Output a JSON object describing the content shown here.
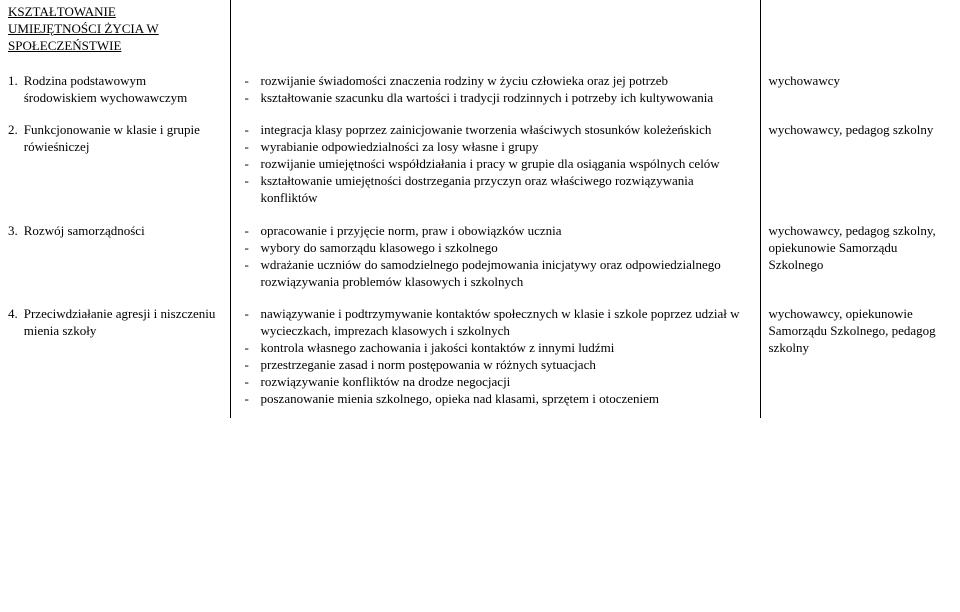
{
  "section_title_lines": [
    "KSZTAŁTOWANIE",
    "UMIEJĘTNOŚCI ŻYCIA W",
    "SPOŁECZEŃSTWIE"
  ],
  "rows": [
    {
      "num": "1.",
      "label": "Rodzina podstawowym środowiskiem wychowawczym",
      "bullets": [
        "rozwijanie świadomości znaczenia rodziny w życiu człowieka oraz jej potrzeb",
        "kształtowanie szacunku dla wartości i tradycji rodzinnych i potrzeby ich kultywowania"
      ],
      "resp": "wychowawcy"
    },
    {
      "num": "2.",
      "label": "Funkcjonowanie w klasie i grupie rówieśniczej",
      "bullets": [
        "integracja klasy poprzez zainicjowanie tworzenia właściwych stosunków koleżeńskich",
        "wyrabianie odpowiedzialności za losy własne i grupy",
        "rozwijanie umiejętności współdziałania i pracy w grupie dla osiągania wspólnych celów",
        "kształtowanie umiejętności dostrzegania przyczyn oraz właściwego rozwiązywania konfliktów"
      ],
      "resp": "wychowawcy, pedagog szkolny"
    },
    {
      "num": "3.",
      "label": "Rozwój samorządności",
      "bullets": [
        "opracowanie i przyjęcie norm, praw i obowiązków ucznia",
        "wybory do samorządu klasowego i szkolnego",
        "wdrażanie uczniów do samodzielnego podejmowania inicjatywy oraz odpowiedzialnego rozwiązywania problemów klasowych i szkolnych"
      ],
      "resp": "wychowawcy, pedagog szkolny, opiekunowie Samorządu Szkolnego"
    },
    {
      "num": "4.",
      "label": "Przeciwdziałanie agresji i niszczeniu mienia szkoły",
      "bullets": [
        "nawiązywanie i podtrzymywanie kontaktów społecznych w klasie i szkole poprzez udział w wycieczkach, imprezach klasowych i szkolnych",
        "kontrola własnego zachowania i jakości kontaktów z innymi ludźmi",
        "przestrzeganie zasad i norm postępowania w różnych sytuacjach",
        "rozwiązywanie konfliktów na drodze negocjacji",
        "poszanowanie mienia szkolnego, opieka nad klasami, sprzętem i otoczeniem"
      ],
      "resp": "wychowawcy, opiekunowie Samorządu Szkolnego, pedagog szkolny"
    }
  ]
}
